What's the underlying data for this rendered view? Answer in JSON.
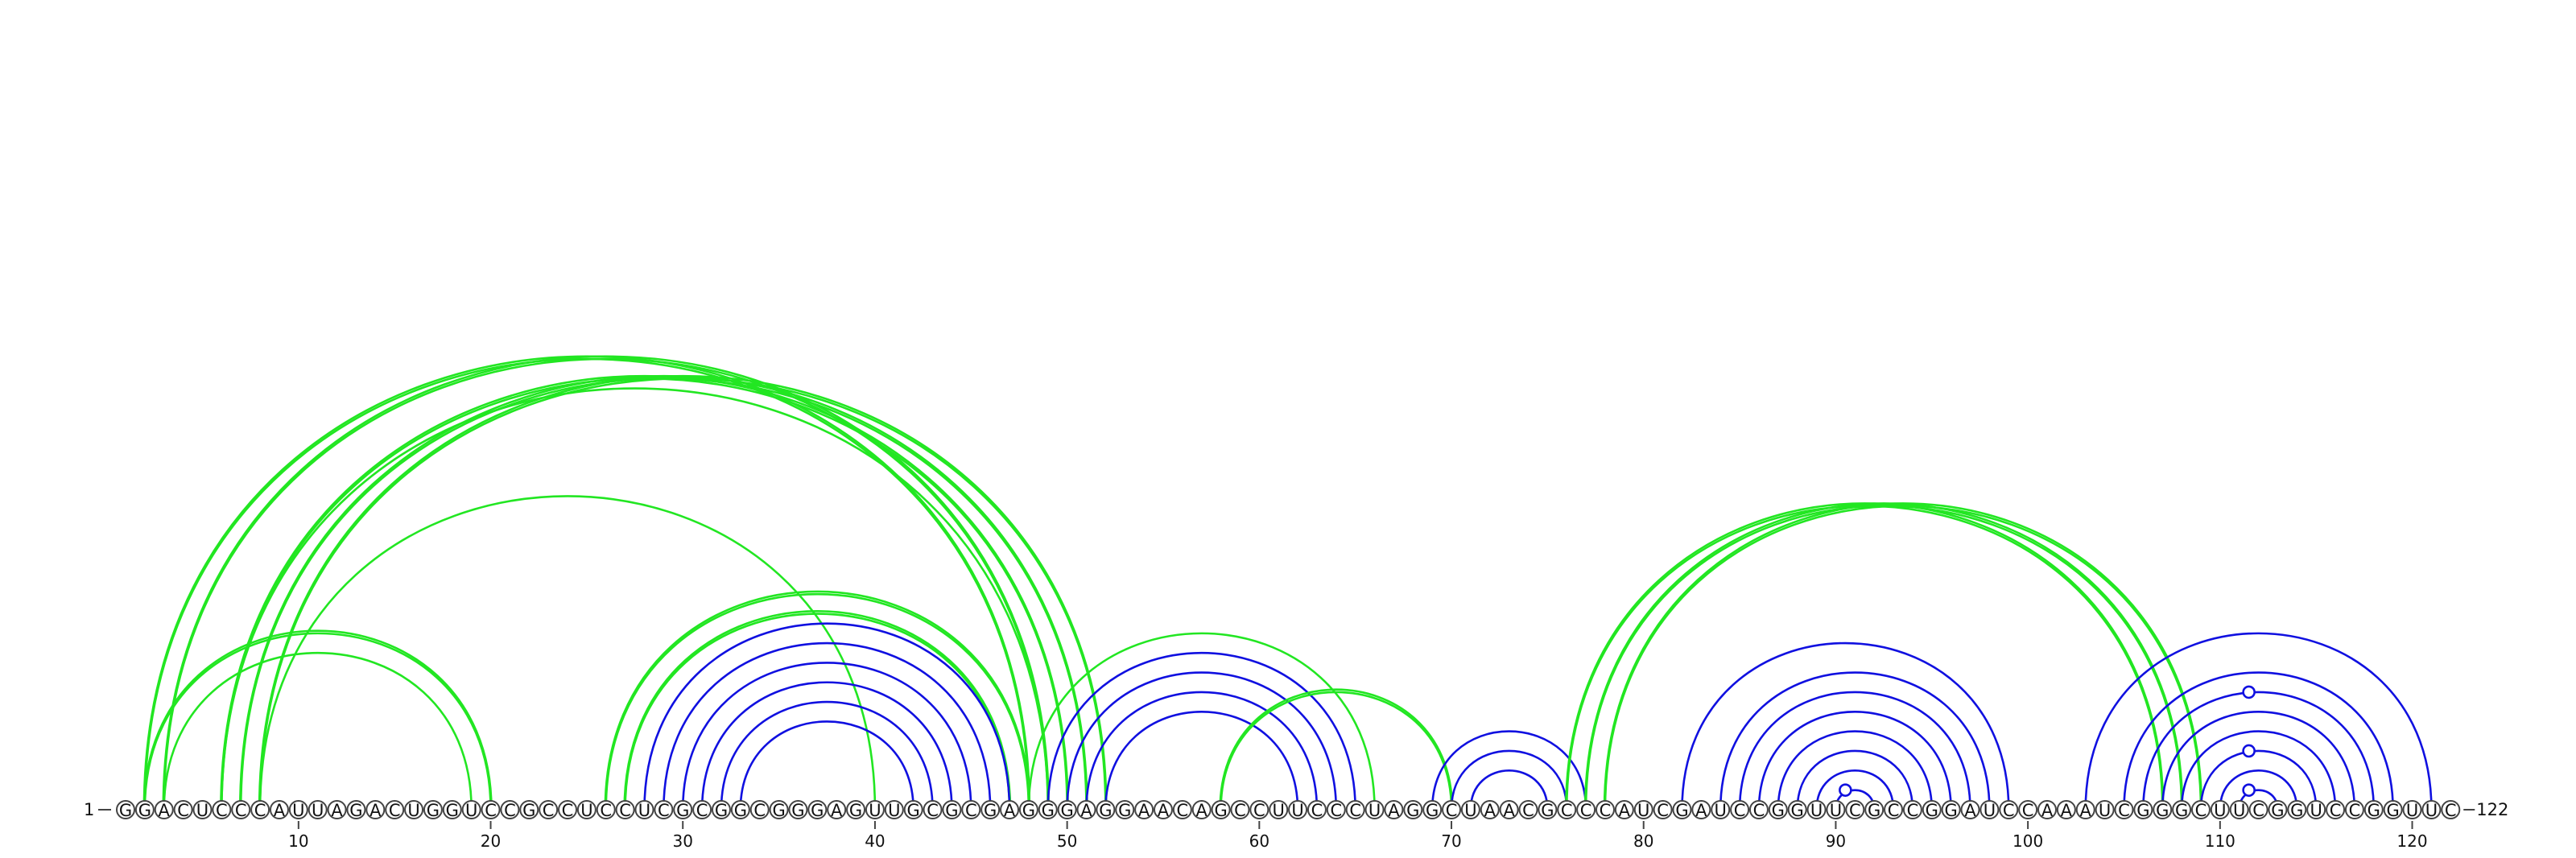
{
  "sequence": "GGACUCCCAUUAGACUGGUCCGCCUCCUCGCGGCGGGAGUUGCGCGAGGGAGGAACAGCCUUCCCUAGGCUAACGCCCAUCGAUCCGGUUCGCCGGAUCCAAAUCGGGCUUCGGUCCGGUUC",
  "start_label": "1",
  "end_label": "122",
  "ticks": [
    10,
    20,
    30,
    40,
    50,
    60,
    70,
    80,
    90,
    100,
    110,
    120
  ],
  "colors": {
    "blue": "#1010e0",
    "green": "#22e622"
  },
  "arcs": [
    {
      "i": 2,
      "j": 48,
      "color": "green"
    },
    {
      "i": 2,
      "j": 48,
      "color": "green"
    },
    {
      "i": 3,
      "j": 49,
      "color": "green"
    },
    {
      "i": 3,
      "j": 49,
      "color": "green"
    },
    {
      "i": 6,
      "j": 49,
      "color": "green"
    },
    {
      "i": 6,
      "j": 50,
      "color": "green"
    },
    {
      "i": 6,
      "j": 50,
      "color": "green"
    },
    {
      "i": 7,
      "j": 51,
      "color": "green"
    },
    {
      "i": 7,
      "j": 51,
      "color": "green"
    },
    {
      "i": 8,
      "j": 52,
      "color": "green"
    },
    {
      "i": 8,
      "j": 52,
      "color": "green"
    },
    {
      "i": 8,
      "j": 40,
      "color": "green"
    },
    {
      "i": 2,
      "j": 20,
      "color": "green"
    },
    {
      "i": 2,
      "j": 20,
      "color": "green"
    },
    {
      "i": 3,
      "j": 19,
      "color": "green"
    },
    {
      "i": 26,
      "j": 48,
      "color": "green"
    },
    {
      "i": 26,
      "j": 48,
      "color": "green"
    },
    {
      "i": 27,
      "j": 47,
      "color": "green"
    },
    {
      "i": 27,
      "j": 47,
      "color": "green"
    },
    {
      "i": 28,
      "j": 47,
      "color": "blue"
    },
    {
      "i": 29,
      "j": 46,
      "color": "blue"
    },
    {
      "i": 30,
      "j": 45,
      "color": "blue"
    },
    {
      "i": 31,
      "j": 44,
      "color": "blue"
    },
    {
      "i": 32,
      "j": 43,
      "color": "blue"
    },
    {
      "i": 33,
      "j": 42,
      "color": "blue"
    },
    {
      "i": 48,
      "j": 66,
      "color": "green"
    },
    {
      "i": 49,
      "j": 65,
      "color": "blue"
    },
    {
      "i": 50,
      "j": 64,
      "color": "blue"
    },
    {
      "i": 51,
      "j": 63,
      "color": "blue"
    },
    {
      "i": 52,
      "j": 62,
      "color": "blue"
    },
    {
      "i": 58,
      "j": 70,
      "color": "green"
    },
    {
      "i": 58,
      "j": 70,
      "color": "green"
    },
    {
      "i": 69,
      "j": 77,
      "color": "blue"
    },
    {
      "i": 70,
      "j": 76,
      "color": "blue"
    },
    {
      "i": 71,
      "j": 75,
      "color": "blue"
    },
    {
      "i": 76,
      "j": 107,
      "color": "green"
    },
    {
      "i": 76,
      "j": 107,
      "color": "green"
    },
    {
      "i": 77,
      "j": 108,
      "color": "green"
    },
    {
      "i": 77,
      "j": 108,
      "color": "green"
    },
    {
      "i": 78,
      "j": 109,
      "color": "green"
    },
    {
      "i": 78,
      "j": 109,
      "color": "green"
    },
    {
      "i": 82,
      "j": 99,
      "color": "blue"
    },
    {
      "i": 84,
      "j": 98,
      "color": "blue"
    },
    {
      "i": 85,
      "j": 97,
      "color": "blue"
    },
    {
      "i": 86,
      "j": 96,
      "color": "blue"
    },
    {
      "i": 87,
      "j": 95,
      "color": "blue"
    },
    {
      "i": 88,
      "j": 94,
      "color": "blue"
    },
    {
      "i": 89,
      "j": 93,
      "color": "blue"
    },
    {
      "i": 90,
      "j": 92,
      "color": "blue"
    },
    {
      "i": 103,
      "j": 121,
      "color": "blue"
    },
    {
      "i": 105,
      "j": 119,
      "color": "blue"
    },
    {
      "i": 106,
      "j": 118,
      "color": "blue"
    },
    {
      "i": 107,
      "j": 117,
      "color": "blue"
    },
    {
      "i": 108,
      "j": 116,
      "color": "blue"
    },
    {
      "i": 109,
      "j": 115,
      "color": "blue"
    },
    {
      "i": 110,
      "j": 114,
      "color": "blue"
    },
    {
      "i": 111,
      "j": 113,
      "color": "blue"
    }
  ],
  "markers": [
    {
      "pos": 90.5,
      "arc_i": 90,
      "arc_j": 92,
      "color": "blue"
    },
    {
      "pos": 111.5,
      "arc_i": 111,
      "arc_j": 113,
      "color": "blue"
    },
    {
      "pos": 111.5,
      "arc_i": 109,
      "arc_j": 115,
      "color": "blue"
    },
    {
      "pos": 111.5,
      "arc_i": 106,
      "arc_j": 118,
      "color": "blue"
    }
  ]
}
